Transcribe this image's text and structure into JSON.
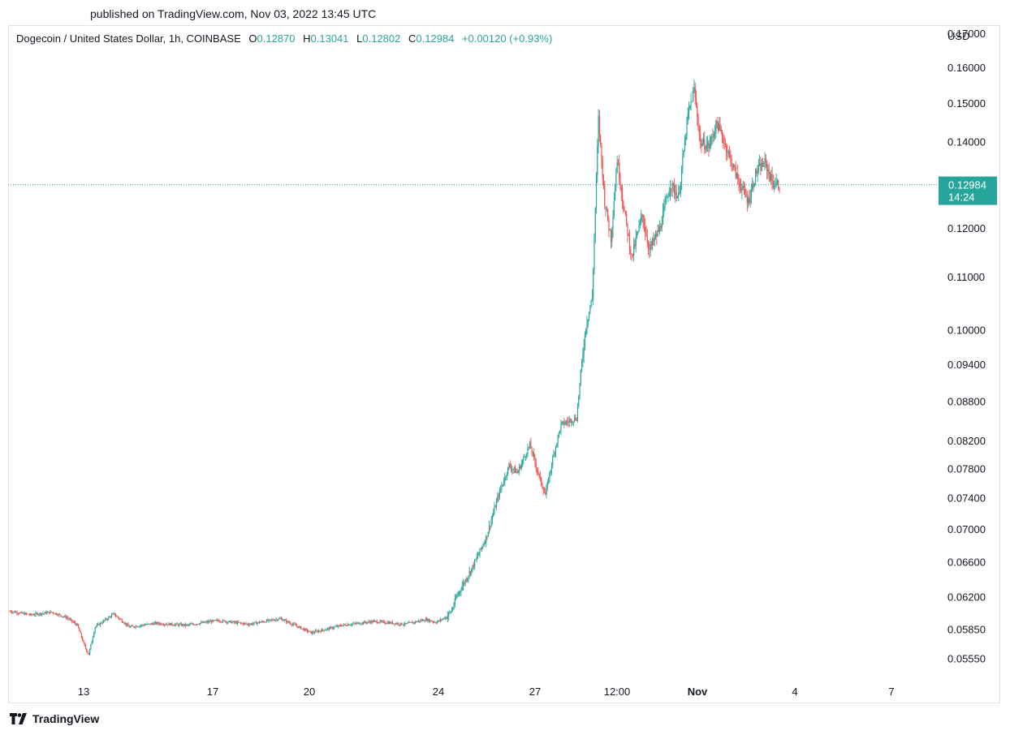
{
  "header": {
    "published": "published on TradingView.com, Nov 03, 2022 13:45 UTC"
  },
  "legend": {
    "symbol": "Dogecoin / United States Dollar, 1h, COINBASE",
    "o_label": "O",
    "o_value": "0.12870",
    "h_label": "H",
    "h_value": "0.13041",
    "l_label": "L",
    "l_value": "0.12802",
    "c_label": "C",
    "c_value": "0.12984",
    "change": "+0.00120 (+0.93%)"
  },
  "footer": {
    "brand": "TradingView",
    "logo_icon": "tradingview-logo-icon"
  },
  "colors": {
    "up": "#26a69a",
    "down": "#ef5350",
    "last_price_bg": "#26a69a",
    "text": "#131722"
  },
  "chart_data": {
    "type": "candlestick",
    "interval": "1h",
    "currency": "USD",
    "y_scale": "log",
    "ylim": [
      0.0535,
      0.1725
    ],
    "y_ticks": [
      "0.17000",
      "0.16000",
      "0.15000",
      "0.14000",
      "0.12000",
      "0.11000",
      "0.10000",
      "0.09400",
      "0.08800",
      "0.08200",
      "0.07800",
      "0.07400",
      "0.07000",
      "0.06600",
      "0.06200",
      "0.05850",
      "0.05550"
    ],
    "x_ticks": [
      "13",
      "17",
      "20",
      "24",
      "27",
      "12:00",
      "Nov",
      "4",
      "7"
    ],
    "last_price": {
      "value": "0.12984",
      "countdown": "14:24"
    },
    "anchors": [
      [
        0,
        0.0605
      ],
      [
        20,
        0.0601
      ],
      [
        40,
        0.0604
      ],
      [
        55,
        0.0598
      ],
      [
        65,
        0.059
      ],
      [
        72,
        0.0568
      ],
      [
        76,
        0.056
      ],
      [
        82,
        0.0588
      ],
      [
        100,
        0.0602
      ],
      [
        115,
        0.0588
      ],
      [
        140,
        0.0592
      ],
      [
        170,
        0.059
      ],
      [
        200,
        0.0595
      ],
      [
        230,
        0.0591
      ],
      [
        260,
        0.0597
      ],
      [
        290,
        0.0582
      ],
      [
        320,
        0.059
      ],
      [
        350,
        0.0594
      ],
      [
        380,
        0.0591
      ],
      [
        400,
        0.0596
      ],
      [
        410,
        0.0593
      ],
      [
        420,
        0.0599
      ],
      [
        425,
        0.0606
      ],
      [
        430,
        0.0622
      ],
      [
        445,
        0.0655
      ],
      [
        458,
        0.069
      ],
      [
        470,
        0.0745
      ],
      [
        480,
        0.0785
      ],
      [
        488,
        0.0775
      ],
      [
        500,
        0.0815
      ],
      [
        510,
        0.0765
      ],
      [
        515,
        0.0745
      ],
      [
        522,
        0.0795
      ],
      [
        530,
        0.0845
      ],
      [
        545,
        0.0855
      ],
      [
        550,
        0.0945
      ],
      [
        554,
        0.101
      ],
      [
        560,
        0.106
      ],
      [
        566,
        0.146
      ],
      [
        572,
        0.126
      ],
      [
        578,
        0.118
      ],
      [
        584,
        0.136
      ],
      [
        590,
        0.125
      ],
      [
        598,
        0.114
      ],
      [
        608,
        0.123
      ],
      [
        615,
        0.1155
      ],
      [
        625,
        0.12
      ],
      [
        635,
        0.13
      ],
      [
        643,
        0.127
      ],
      [
        652,
        0.147
      ],
      [
        658,
        0.154
      ],
      [
        664,
        0.14
      ],
      [
        672,
        0.139
      ],
      [
        680,
        0.145
      ],
      [
        690,
        0.138
      ],
      [
        700,
        0.131
      ],
      [
        710,
        0.126
      ],
      [
        718,
        0.133
      ],
      [
        726,
        0.135
      ],
      [
        734,
        0.13
      ],
      [
        740,
        0.1298
      ]
    ]
  }
}
